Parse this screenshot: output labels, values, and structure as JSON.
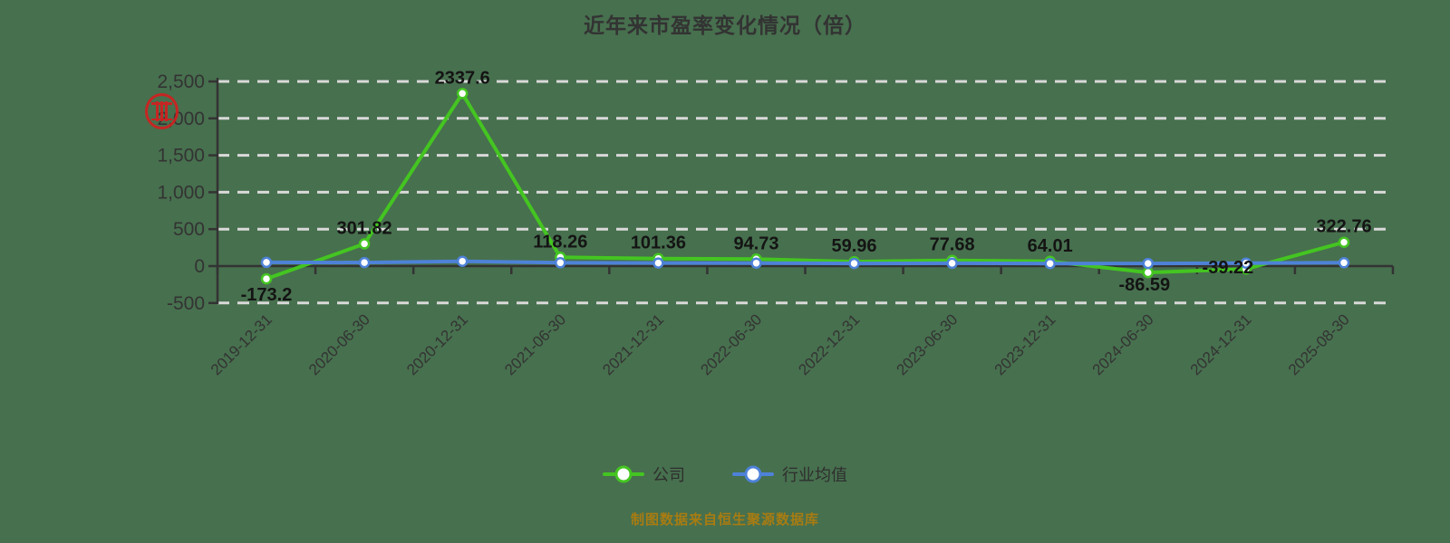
{
  "title": "近年来市盈率变化情况（倍）",
  "source_note": "制图数据来自恒生聚源数据库",
  "icons": {
    "red-seal": "red circular stamp watermark overlapping the 2,000 axis label"
  },
  "colors": {
    "background": "#47704e",
    "company_line": "#44c521",
    "industry_line": "#4e82d8",
    "gridline": "#d9d9d9",
    "axis": "#333333",
    "data_label": "#141414",
    "source_note": "#a87c12"
  },
  "legend": {
    "items": [
      {
        "label": "公司",
        "color": "#44c521"
      },
      {
        "label": "行业均值",
        "color": "#4e82d8"
      }
    ]
  },
  "chart_data": {
    "type": "line",
    "title": "近年来市盈率变化情况（倍）",
    "xlabel": "",
    "ylabel": "",
    "categories": [
      "2019-12-31",
      "2020-06-30",
      "2020-12-31",
      "2021-06-30",
      "2021-12-31",
      "2022-06-30",
      "2022-12-31",
      "2023-06-30",
      "2023-12-31",
      "2024-06-30",
      "2024-12-31",
      "2025-08-30"
    ],
    "series": [
      {
        "name": "公司",
        "color": "#44c521",
        "values": [
          -173.2,
          301.82,
          2337.6,
          118.26,
          101.36,
          94.73,
          59.96,
          77.68,
          64.01,
          -86.59,
          -39.22,
          322.76
        ],
        "labels": [
          "-173.2",
          "301.82",
          "2337.6",
          "118.26",
          "101.36",
          "94.73",
          "59.96",
          "77.68",
          "64.01",
          "-86.59",
          "-39.22",
          "322.76"
        ]
      },
      {
        "name": "行业均值",
        "color": "#4e82d8",
        "values": [
          50,
          48,
          65,
          45,
          42,
          40,
          36,
          38,
          34,
          36,
          40,
          45
        ],
        "values_estimated": true,
        "labels": []
      }
    ],
    "ylim": [
      -500,
      2500
    ],
    "yticks": [
      2500,
      2000,
      1500,
      1000,
      500,
      0,
      -500
    ],
    "ytick_labels": [
      "2,500",
      "2,000",
      "1,500",
      "1,000",
      "500",
      "0",
      "-500"
    ],
    "grid": "horizontal dashed white lines",
    "legend_position": "bottom",
    "x_label_rotation": -45
  }
}
